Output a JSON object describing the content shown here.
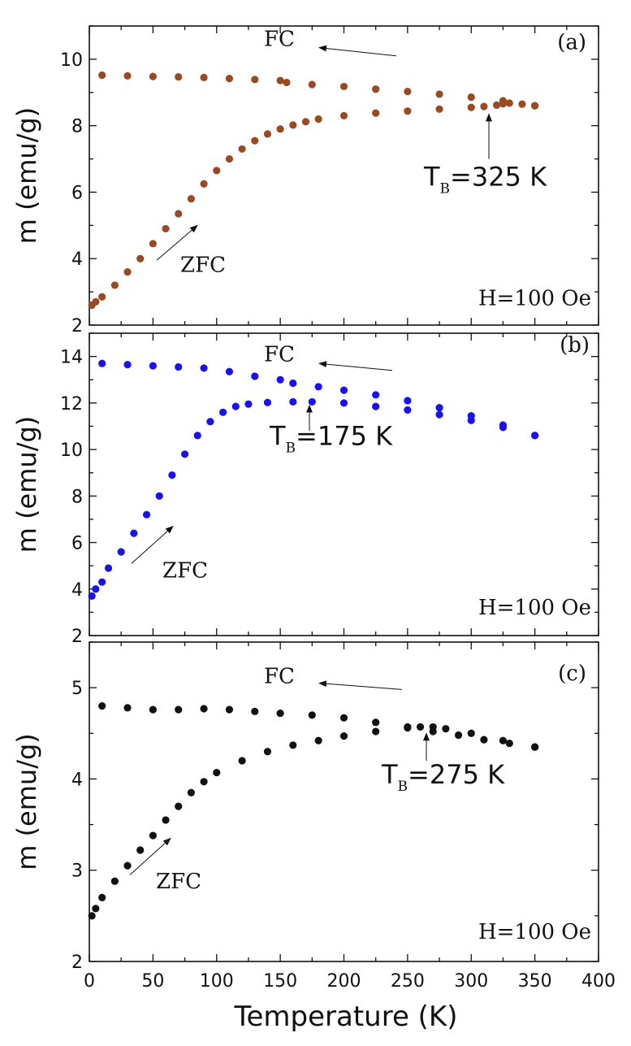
{
  "figure": {
    "xlabel": "Temperature (K)"
  },
  "chart_data": [
    {
      "type": "scatter",
      "panel_label": "(a)",
      "ylabel": "m (emu/g)",
      "xlim": [
        0,
        400
      ],
      "ylim": [
        2,
        11
      ],
      "x_ticks": [
        0,
        50,
        100,
        150,
        200,
        250,
        300,
        350,
        400
      ],
      "y_ticks": [
        2,
        4,
        6,
        8,
        10
      ],
      "color": "#9a4a22",
      "field_label": "H=100 Oe",
      "fc_label": "FC",
      "zfc_label": "ZFC",
      "tb_prefix": "T",
      "tb_sub": "B",
      "tb_value": "=325 K",
      "series": [
        {
          "name": "FC",
          "x": [
            10,
            30,
            50,
            70,
            90,
            110,
            130,
            150,
            155,
            175,
            200,
            225,
            250,
            275,
            300,
            325,
            350
          ],
          "y": [
            9.52,
            9.5,
            9.48,
            9.47,
            9.45,
            9.42,
            9.39,
            9.36,
            9.3,
            9.24,
            9.18,
            9.1,
            9.03,
            8.95,
            8.86,
            8.75,
            8.6
          ]
        },
        {
          "name": "ZFC",
          "x": [
            2,
            5,
            10,
            20,
            30,
            40,
            50,
            60,
            70,
            80,
            90,
            100,
            110,
            120,
            130,
            140,
            150,
            160,
            170,
            180,
            200,
            225,
            250,
            275,
            300,
            310,
            320,
            325,
            330,
            340,
            350
          ],
          "y": [
            2.6,
            2.7,
            2.85,
            3.2,
            3.6,
            4.0,
            4.45,
            4.9,
            5.35,
            5.8,
            6.25,
            6.65,
            7.0,
            7.3,
            7.55,
            7.75,
            7.9,
            8.02,
            8.12,
            8.2,
            8.3,
            8.38,
            8.44,
            8.5,
            8.55,
            8.58,
            8.62,
            8.66,
            8.68,
            8.65,
            8.6
          ]
        }
      ]
    },
    {
      "type": "scatter",
      "panel_label": "(b)",
      "ylabel": "m (emu/g)",
      "xlim": [
        0,
        400
      ],
      "ylim": [
        2,
        15
      ],
      "x_ticks": [
        0,
        50,
        100,
        150,
        200,
        250,
        300,
        350,
        400
      ],
      "y_ticks": [
        2,
        4,
        6,
        8,
        10,
        12,
        14
      ],
      "color": "#1a12ee",
      "field_label": "H=100 Oe",
      "fc_label": "FC",
      "zfc_label": "ZFC",
      "tb_prefix": "T",
      "tb_sub": "B",
      "tb_value": "=175 K",
      "series": [
        {
          "name": "FC",
          "x": [
            10,
            30,
            50,
            70,
            90,
            110,
            130,
            150,
            160,
            180,
            200,
            225,
            250,
            275,
            300,
            325,
            350
          ],
          "y": [
            13.7,
            13.65,
            13.6,
            13.55,
            13.5,
            13.35,
            13.15,
            13.0,
            12.85,
            12.7,
            12.55,
            12.35,
            12.1,
            11.8,
            11.45,
            11.05,
            10.6
          ]
        },
        {
          "name": "ZFC",
          "x": [
            2,
            5,
            10,
            15,
            25,
            35,
            45,
            55,
            65,
            75,
            85,
            95,
            105,
            115,
            125,
            140,
            160,
            175,
            200,
            225,
            250,
            275,
            300,
            325,
            350
          ],
          "y": [
            3.7,
            4.0,
            4.3,
            4.9,
            5.6,
            6.4,
            7.2,
            8.0,
            8.9,
            9.8,
            10.6,
            11.2,
            11.6,
            11.85,
            11.95,
            12.02,
            12.05,
            12.05,
            12.0,
            11.85,
            11.7,
            11.5,
            11.25,
            10.95,
            10.6
          ]
        }
      ]
    },
    {
      "type": "scatter",
      "panel_label": "(c)",
      "ylabel": "m (emu/g)",
      "xlim": [
        0,
        400
      ],
      "ylim": [
        2,
        5.5
      ],
      "x_ticks": [
        0,
        50,
        100,
        150,
        200,
        250,
        300,
        350,
        400
      ],
      "y_ticks": [
        2,
        3,
        4,
        5
      ],
      "color": "#111111",
      "field_label": "H=100 Oe",
      "fc_label": "FC",
      "zfc_label": "ZFC",
      "tb_prefix": "T",
      "tb_sub": "B",
      "tb_value": "=275 K",
      "series": [
        {
          "name": "FC",
          "x": [
            10,
            30,
            50,
            70,
            90,
            110,
            130,
            150,
            175,
            200,
            225,
            250,
            270,
            290,
            310,
            330,
            350
          ],
          "y": [
            4.8,
            4.78,
            4.76,
            4.76,
            4.77,
            4.76,
            4.74,
            4.72,
            4.7,
            4.67,
            4.62,
            4.57,
            4.52,
            4.48,
            4.43,
            4.39,
            4.35
          ]
        },
        {
          "name": "ZFC",
          "x": [
            2,
            5,
            10,
            20,
            30,
            40,
            50,
            60,
            70,
            80,
            90,
            100,
            120,
            140,
            160,
            180,
            200,
            225,
            250,
            260,
            270,
            280,
            300,
            325,
            350
          ],
          "y": [
            2.5,
            2.58,
            2.7,
            2.88,
            3.05,
            3.22,
            3.38,
            3.55,
            3.7,
            3.85,
            3.97,
            4.07,
            4.2,
            4.3,
            4.37,
            4.42,
            4.47,
            4.52,
            4.56,
            4.57,
            4.57,
            4.55,
            4.5,
            4.42,
            4.35
          ]
        }
      ]
    }
  ]
}
